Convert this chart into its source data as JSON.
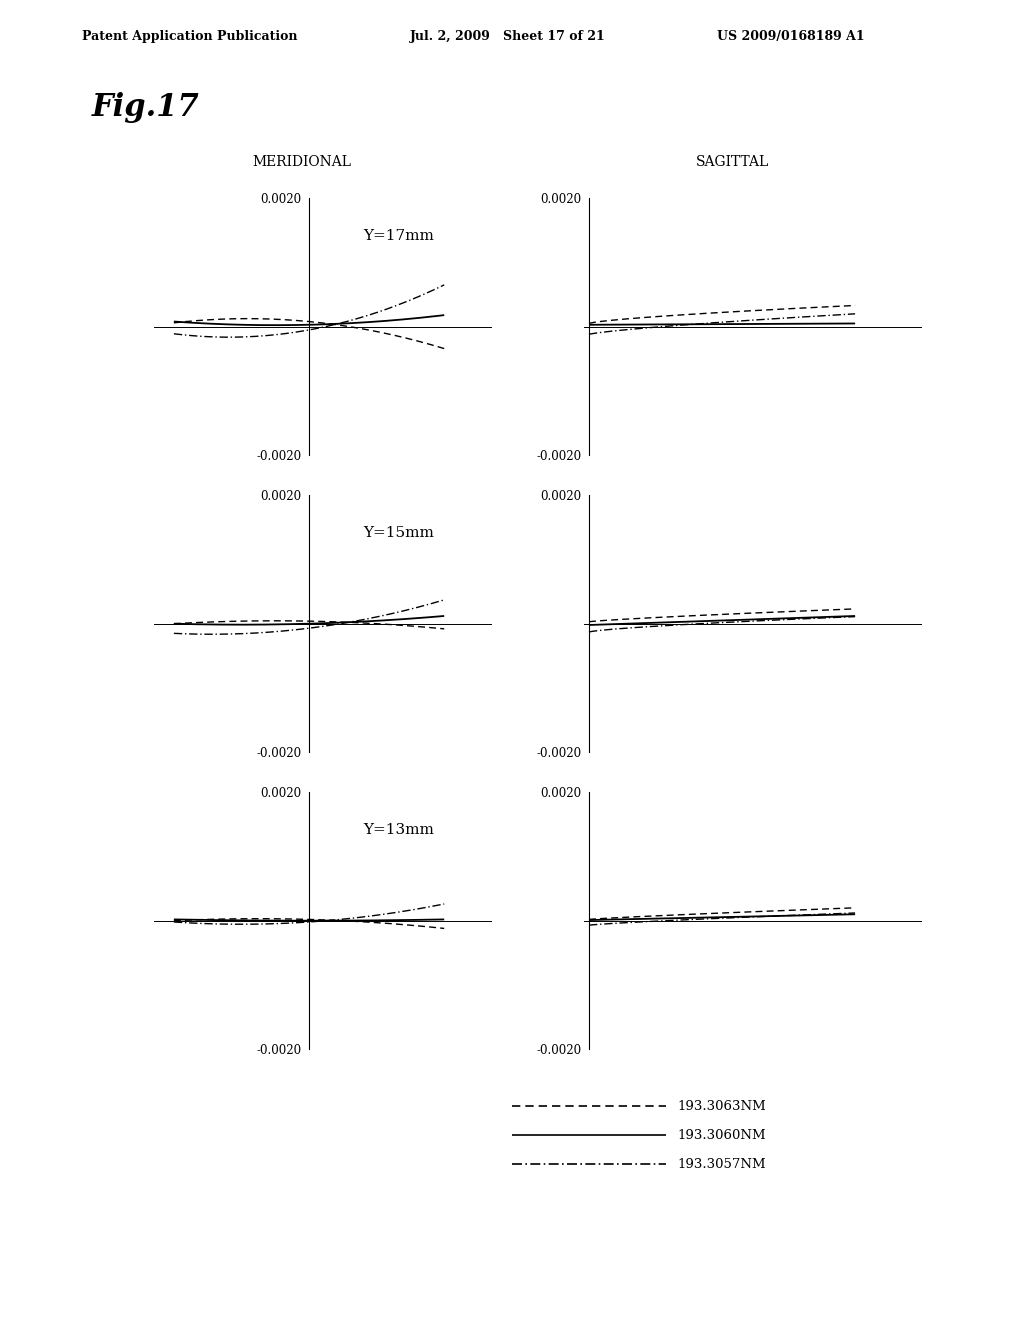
{
  "fig_title": "Fig.17",
  "header_left": "Patent Application Publication",
  "header_center": "Jul. 2, 2009   Sheet 17 of 21",
  "header_right": "US 2009/0168189 A1",
  "col_labels": [
    "MERIDIONAL",
    "SAGITTAL"
  ],
  "row_labels": [
    "Y=17mm",
    "Y=15mm",
    "Y=13mm"
  ],
  "ylim": [
    -0.002,
    0.002
  ],
  "background_color": "#ffffff",
  "line_labels": [
    "193.3063NM",
    "193.3060NM",
    "193.3057NM"
  ],
  "line_color": "#000000"
}
